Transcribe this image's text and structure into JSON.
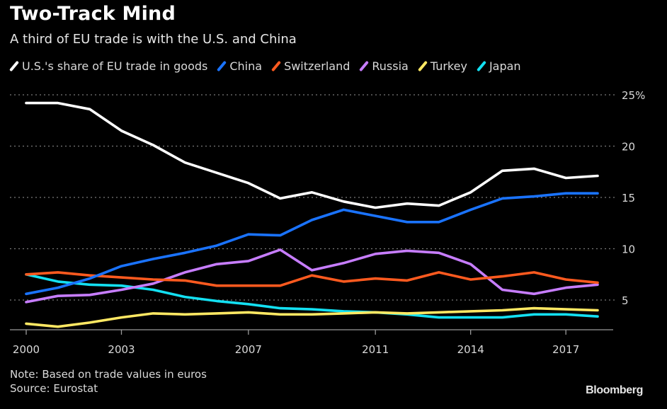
{
  "header": {
    "title": "Two-Track Mind",
    "subtitle": "A third of EU trade is with the U.S. and China"
  },
  "footer": {
    "note": "Note: Based on trade values in euros",
    "source": "Source: Eurostat",
    "brand": "Bloomberg"
  },
  "chart_data": {
    "type": "line",
    "title": "Two-Track Mind",
    "subtitle": "A third of EU trade is with the U.S. and China",
    "xlabel": "",
    "ylabel": "",
    "x": [
      2000,
      2001,
      2002,
      2003,
      2004,
      2005,
      2006,
      2007,
      2008,
      2009,
      2010,
      2011,
      2012,
      2013,
      2014,
      2015,
      2016,
      2017,
      2018
    ],
    "x_ticks": [
      2000,
      2003,
      2007,
      2011,
      2014,
      2017
    ],
    "x_tick_labels": [
      "2000",
      "2003",
      "2007",
      "2011",
      "2014",
      "2017"
    ],
    "y_ticks": [
      5,
      10,
      15,
      20,
      25
    ],
    "y_tick_labels": [
      "5",
      "10",
      "15",
      "20",
      "25%"
    ],
    "ylim": [
      2.1,
      25
    ],
    "xlim": [
      2000,
      2018
    ],
    "y_axis_side": "right",
    "grid": true,
    "legend_position": "top-left",
    "series": [
      {
        "name": "U.S.'s share of EU trade in goods",
        "color": "#ffffff",
        "values": [
          24.2,
          24.2,
          23.6,
          21.5,
          20.1,
          18.4,
          17.4,
          16.4,
          14.9,
          15.5,
          14.6,
          14.0,
          14.4,
          14.2,
          15.5,
          17.6,
          17.8,
          16.9,
          17.1
        ]
      },
      {
        "name": "China",
        "color": "#1a73ff",
        "values": [
          5.6,
          6.2,
          7.1,
          8.3,
          9.0,
          9.6,
          10.3,
          11.4,
          11.3,
          12.8,
          13.8,
          13.2,
          12.6,
          12.6,
          13.8,
          14.9,
          15.1,
          15.4,
          15.4
        ]
      },
      {
        "name": "Switzerland",
        "color": "#ff5a1f",
        "values": [
          7.5,
          7.7,
          7.4,
          7.2,
          7.0,
          6.9,
          6.4,
          6.4,
          6.4,
          7.4,
          6.8,
          7.1,
          6.9,
          7.7,
          7.0,
          7.3,
          7.7,
          7.0,
          6.7
        ]
      },
      {
        "name": "Russia",
        "color": "#c77dff",
        "values": [
          4.8,
          5.4,
          5.5,
          6.0,
          6.6,
          7.7,
          8.5,
          8.8,
          9.9,
          7.9,
          8.6,
          9.5,
          9.8,
          9.6,
          8.5,
          6.0,
          5.6,
          6.2,
          6.5
        ]
      },
      {
        "name": "Turkey",
        "color": "#ffe863",
        "values": [
          2.7,
          2.4,
          2.8,
          3.3,
          3.7,
          3.6,
          3.7,
          3.8,
          3.6,
          3.6,
          3.7,
          3.8,
          3.7,
          3.8,
          3.9,
          4.0,
          4.2,
          4.1,
          4.0
        ]
      },
      {
        "name": "Japan",
        "color": "#13e0f2",
        "values": [
          7.5,
          6.8,
          6.5,
          6.4,
          6.0,
          5.3,
          4.9,
          4.6,
          4.2,
          4.1,
          3.9,
          3.8,
          3.6,
          3.3,
          3.3,
          3.3,
          3.6,
          3.6,
          3.4
        ]
      }
    ]
  }
}
